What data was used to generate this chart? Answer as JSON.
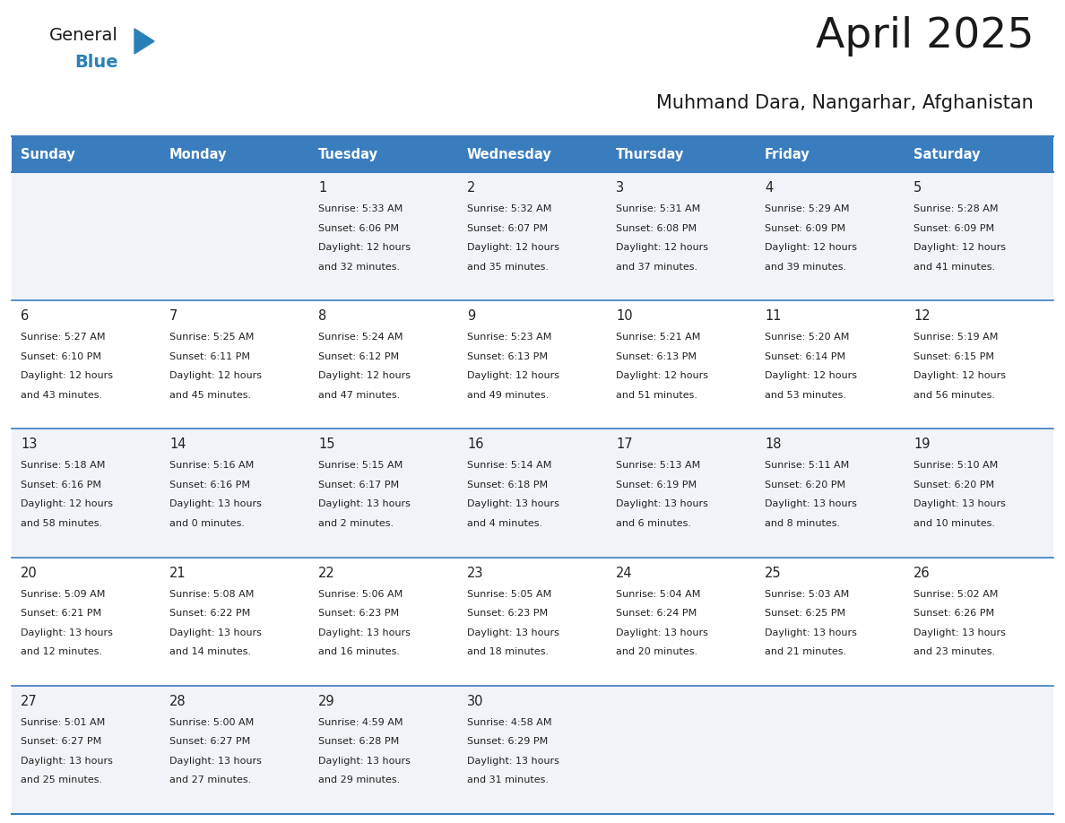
{
  "title": "April 2025",
  "subtitle": "Muhmand Dara, Nangarhar, Afghanistan",
  "days_of_week": [
    "Sunday",
    "Monday",
    "Tuesday",
    "Wednesday",
    "Thursday",
    "Friday",
    "Saturday"
  ],
  "header_bg_color": "#3a7dbf",
  "header_text_color": "#ffffff",
  "row_bg_even": "#f0f4f8",
  "row_bg_odd": "#ffffff",
  "separator_color": "#3a7dbf",
  "title_color": "#1a1a1a",
  "cell_text_color": "#222222",
  "logo_general_color": "#1a1a1a",
  "logo_blue_color": "#2980b9",
  "calendar_data": [
    [
      {
        "day": "",
        "sunrise": "",
        "sunset": "",
        "daylight": ""
      },
      {
        "day": "",
        "sunrise": "",
        "sunset": "",
        "daylight": ""
      },
      {
        "day": "1",
        "sunrise": "5:33 AM",
        "sunset": "6:06 PM",
        "daylight": "12 hours and 32 minutes."
      },
      {
        "day": "2",
        "sunrise": "5:32 AM",
        "sunset": "6:07 PM",
        "daylight": "12 hours and 35 minutes."
      },
      {
        "day": "3",
        "sunrise": "5:31 AM",
        "sunset": "6:08 PM",
        "daylight": "12 hours and 37 minutes."
      },
      {
        "day": "4",
        "sunrise": "5:29 AM",
        "sunset": "6:09 PM",
        "daylight": "12 hours and 39 minutes."
      },
      {
        "day": "5",
        "sunrise": "5:28 AM",
        "sunset": "6:09 PM",
        "daylight": "12 hours and 41 minutes."
      }
    ],
    [
      {
        "day": "6",
        "sunrise": "5:27 AM",
        "sunset": "6:10 PM",
        "daylight": "12 hours and 43 minutes."
      },
      {
        "day": "7",
        "sunrise": "5:25 AM",
        "sunset": "6:11 PM",
        "daylight": "12 hours and 45 minutes."
      },
      {
        "day": "8",
        "sunrise": "5:24 AM",
        "sunset": "6:12 PM",
        "daylight": "12 hours and 47 minutes."
      },
      {
        "day": "9",
        "sunrise": "5:23 AM",
        "sunset": "6:13 PM",
        "daylight": "12 hours and 49 minutes."
      },
      {
        "day": "10",
        "sunrise": "5:21 AM",
        "sunset": "6:13 PM",
        "daylight": "12 hours and 51 minutes."
      },
      {
        "day": "11",
        "sunrise": "5:20 AM",
        "sunset": "6:14 PM",
        "daylight": "12 hours and 53 minutes."
      },
      {
        "day": "12",
        "sunrise": "5:19 AM",
        "sunset": "6:15 PM",
        "daylight": "12 hours and 56 minutes."
      }
    ],
    [
      {
        "day": "13",
        "sunrise": "5:18 AM",
        "sunset": "6:16 PM",
        "daylight": "12 hours and 58 minutes."
      },
      {
        "day": "14",
        "sunrise": "5:16 AM",
        "sunset": "6:16 PM",
        "daylight": "13 hours and 0 minutes."
      },
      {
        "day": "15",
        "sunrise": "5:15 AM",
        "sunset": "6:17 PM",
        "daylight": "13 hours and 2 minutes."
      },
      {
        "day": "16",
        "sunrise": "5:14 AM",
        "sunset": "6:18 PM",
        "daylight": "13 hours and 4 minutes."
      },
      {
        "day": "17",
        "sunrise": "5:13 AM",
        "sunset": "6:19 PM",
        "daylight": "13 hours and 6 minutes."
      },
      {
        "day": "18",
        "sunrise": "5:11 AM",
        "sunset": "6:20 PM",
        "daylight": "13 hours and 8 minutes."
      },
      {
        "day": "19",
        "sunrise": "5:10 AM",
        "sunset": "6:20 PM",
        "daylight": "13 hours and 10 minutes."
      }
    ],
    [
      {
        "day": "20",
        "sunrise": "5:09 AM",
        "sunset": "6:21 PM",
        "daylight": "13 hours and 12 minutes."
      },
      {
        "day": "21",
        "sunrise": "5:08 AM",
        "sunset": "6:22 PM",
        "daylight": "13 hours and 14 minutes."
      },
      {
        "day": "22",
        "sunrise": "5:06 AM",
        "sunset": "6:23 PM",
        "daylight": "13 hours and 16 minutes."
      },
      {
        "day": "23",
        "sunrise": "5:05 AM",
        "sunset": "6:23 PM",
        "daylight": "13 hours and 18 minutes."
      },
      {
        "day": "24",
        "sunrise": "5:04 AM",
        "sunset": "6:24 PM",
        "daylight": "13 hours and 20 minutes."
      },
      {
        "day": "25",
        "sunrise": "5:03 AM",
        "sunset": "6:25 PM",
        "daylight": "13 hours and 21 minutes."
      },
      {
        "day": "26",
        "sunrise": "5:02 AM",
        "sunset": "6:26 PM",
        "daylight": "13 hours and 23 minutes."
      }
    ],
    [
      {
        "day": "27",
        "sunrise": "5:01 AM",
        "sunset": "6:27 PM",
        "daylight": "13 hours and 25 minutes."
      },
      {
        "day": "28",
        "sunrise": "5:00 AM",
        "sunset": "6:27 PM",
        "daylight": "13 hours and 27 minutes."
      },
      {
        "day": "29",
        "sunrise": "4:59 AM",
        "sunset": "6:28 PM",
        "daylight": "13 hours and 29 minutes."
      },
      {
        "day": "30",
        "sunrise": "4:58 AM",
        "sunset": "6:29 PM",
        "daylight": "13 hours and 31 minutes."
      },
      {
        "day": "",
        "sunrise": "",
        "sunset": "",
        "daylight": ""
      },
      {
        "day": "",
        "sunrise": "",
        "sunset": "",
        "daylight": ""
      },
      {
        "day": "",
        "sunrise": "",
        "sunset": "",
        "daylight": ""
      }
    ]
  ]
}
